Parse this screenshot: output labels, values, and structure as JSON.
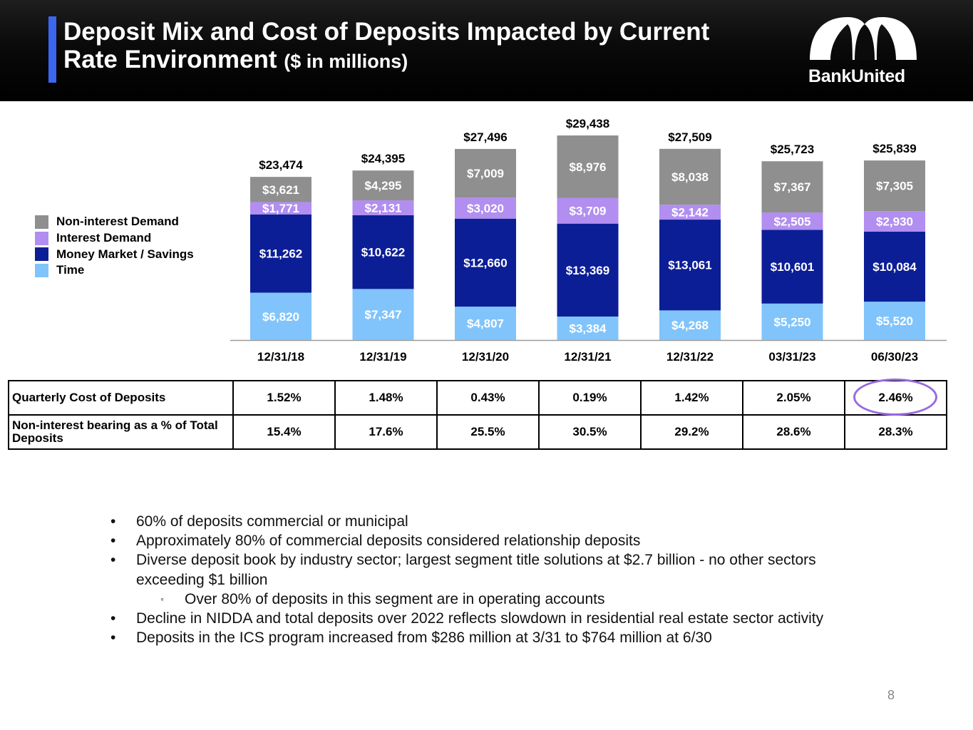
{
  "header": {
    "title_line1": "Deposit Mix and Cost of Deposits Impacted by Current",
    "title_line2": "Rate Environment",
    "title_suffix": "($ in millions)",
    "logo_text": "BankUnited",
    "logo_icon": "bankunited-arch-logo"
  },
  "colors": {
    "accent": "#3a66f2",
    "non_interest_demand": "#8f8f8f",
    "interest_demand": "#b18ef0",
    "money_market_savings": "#0c1e96",
    "time": "#80c4fb",
    "highlight": "#9a6ae0"
  },
  "chart_data": {
    "type": "bar",
    "stacked": true,
    "title": "Deposit Mix ($ in millions)",
    "xlabel": "",
    "ylabel": "",
    "categories": [
      "12/31/18",
      "12/31/19",
      "12/31/20",
      "12/31/21",
      "12/31/22",
      "03/31/23",
      "06/30/23"
    ],
    "series": [
      {
        "name": "Time",
        "key": "time",
        "values": [
          6820,
          7347,
          4807,
          3384,
          4268,
          5250,
          5520
        ],
        "labels": [
          "$6,820",
          "$7,347",
          "$4,807",
          "$3,384",
          "$4,268",
          "$5,250",
          "$5,520"
        ]
      },
      {
        "name": "Money Market / Savings",
        "key": "money_market_savings",
        "values": [
          11262,
          10622,
          12660,
          13369,
          13061,
          10601,
          10084
        ],
        "labels": [
          "$11,262",
          "$10,622",
          "$12,660",
          "$13,369",
          "$13,061",
          "$10,601",
          "$10,084"
        ]
      },
      {
        "name": "Interest Demand",
        "key": "interest_demand",
        "values": [
          1771,
          2131,
          3020,
          3709,
          2142,
          2505,
          2930
        ],
        "labels": [
          "$1,771",
          "$2,131",
          "$3,020",
          "$3,709",
          "$2,142",
          "$2,505",
          "$2,930"
        ]
      },
      {
        "name": "Non-interest Demand",
        "key": "non_interest_demand",
        "values": [
          3621,
          4295,
          7009,
          8976,
          8038,
          7367,
          7305
        ],
        "labels": [
          "$3,621",
          "$4,295",
          "$7,009",
          "$8,976",
          "$8,038",
          "$7,367",
          "$7,305"
        ]
      }
    ],
    "totals": [
      23474,
      24395,
      27496,
      29438,
      27509,
      25723,
      25839
    ],
    "total_labels": [
      "$23,474",
      "$24,395",
      "$27,496",
      "$29,438",
      "$27,509",
      "$25,723",
      "$25,839"
    ],
    "ylim": [
      0,
      30000
    ],
    "grid": false,
    "legend": {
      "position": "left",
      "items": [
        "Non-interest Demand",
        "Interest Demand",
        "Money Market / Savings",
        "Time"
      ]
    }
  },
  "table": {
    "rows": [
      {
        "label": "Quarterly Cost of Deposits",
        "values": [
          "1.52%",
          "1.48%",
          "0.43%",
          "0.19%",
          "1.42%",
          "2.05%",
          "2.46%"
        ]
      },
      {
        "label": "Non-interest bearing as a % of Total Deposits",
        "values": [
          "15.4%",
          "17.6%",
          "25.5%",
          "30.5%",
          "29.2%",
          "28.6%",
          "28.3%"
        ]
      }
    ],
    "highlighted_cell": "2.46%"
  },
  "bullets": [
    {
      "level": 1,
      "marker": "•",
      "text": "60% of deposits commercial or municipal"
    },
    {
      "level": 1,
      "marker": "•",
      "text": "Approximately 80% of commercial deposits considered relationship deposits"
    },
    {
      "level": 1,
      "marker": "•",
      "text": "Diverse deposit book by industry sector; largest segment title solutions at $2.7 billion - no other sectors exceeding $1 billion"
    },
    {
      "level": 2,
      "marker": "◦",
      "text": "Over 80% of deposits in this segment are in operating accounts"
    },
    {
      "level": 1,
      "marker": "•",
      "text": "Decline in NIDDA and total deposits over 2022 reflects slowdown in residential real estate sector activity"
    },
    {
      "level": 1,
      "marker": "•",
      "text": "Deposits in the ICS program increased from $286 million at 3/31 to $764 million at 6/30"
    }
  ],
  "page_number": "8"
}
